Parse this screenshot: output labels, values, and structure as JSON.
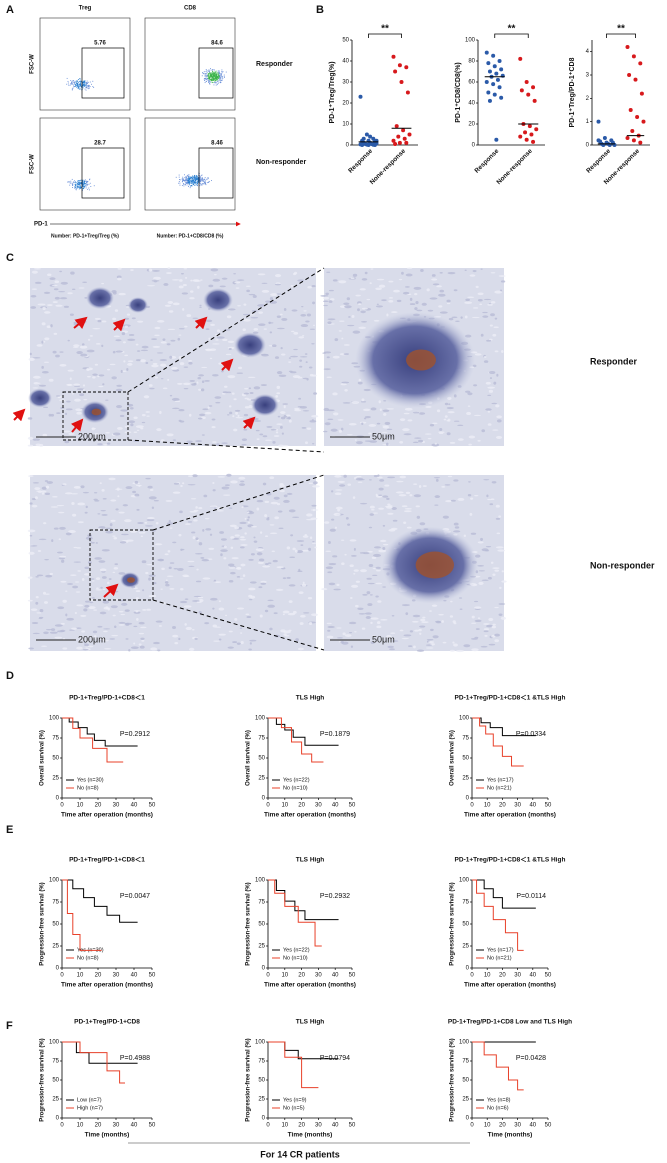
{
  "panel_labels": [
    "A",
    "B",
    "C",
    "D",
    "E",
    "F"
  ],
  "flow": {
    "columns": [
      "Treg",
      "CD8"
    ],
    "rows": [
      "Responder",
      "Non-responder"
    ],
    "gates": [
      5.76,
      84.6,
      28.7,
      8.46
    ],
    "y_axis": "FSC-W",
    "x_axis": "PD-1",
    "x_titles": [
      "Number: PD-1+Treg/Treg (%)",
      "Number: PD-1+CD8/CD8 (%)"
    ]
  },
  "ihc": {
    "rows": [
      "Responder",
      "Non-responder"
    ],
    "scale_bars": [
      "200μm",
      "50μm"
    ]
  },
  "footer": "For 14 CR patients",
  "chart_data": [
    {
      "type": "strip",
      "ylabel": "PD-1⁺Treg/Treg(%)",
      "categories": [
        "Response",
        "None-response"
      ],
      "colors": [
        "#2b5aa8",
        "#d7191c"
      ],
      "annotation": "**",
      "ylim": [
        0,
        50
      ],
      "yticks": [
        0,
        10,
        20,
        30,
        40,
        50
      ],
      "points": [
        [
          23,
          5,
          3,
          2,
          2,
          1.5,
          1,
          1,
          0.8,
          0.5,
          0.5,
          0.3,
          0.2,
          0.1,
          0,
          0,
          0,
          3,
          4,
          2
        ],
        [
          42,
          38,
          37,
          35,
          30,
          25,
          9,
          7,
          5,
          4,
          3,
          2,
          1,
          1,
          0.5
        ]
      ],
      "medians": [
        1.5,
        8
      ]
    },
    {
      "type": "strip",
      "ylabel": "PD-1⁺CD8/CD8(%)",
      "categories": [
        "Response",
        "None-response"
      ],
      "colors": [
        "#2b5aa8",
        "#d7191c"
      ],
      "annotation": "**",
      "ylim": [
        0,
        100
      ],
      "yticks": [
        0,
        20,
        40,
        60,
        80,
        100
      ],
      "points": [
        [
          88,
          85,
          80,
          78,
          75,
          72,
          70,
          68,
          66,
          65,
          62,
          60,
          58,
          55,
          50,
          48,
          45,
          42,
          5
        ],
        [
          82,
          60,
          55,
          52,
          48,
          42,
          20,
          18,
          15,
          12,
          10,
          8,
          5,
          3
        ]
      ],
      "medians": [
        65,
        20
      ]
    },
    {
      "type": "strip",
      "ylabel": "PD-1⁺Treg/PD-1⁺CD8",
      "categories": [
        "Response",
        "None-response"
      ],
      "colors": [
        "#2b5aa8",
        "#d7191c"
      ],
      "annotation": "**",
      "ylim": [
        0,
        4.5
      ],
      "yticks": [
        0,
        1,
        2,
        3,
        4
      ],
      "points": [
        [
          1.0,
          0.3,
          0.2,
          0.15,
          0.1,
          0.1,
          0.05,
          0.05,
          0,
          0,
          0,
          0.2
        ],
        [
          4.2,
          3.8,
          3.5,
          3.0,
          2.8,
          2.2,
          1.5,
          1.2,
          1.0,
          0.6,
          0.4,
          0.3,
          0.2,
          0.1
        ]
      ],
      "medians": [
        0.05,
        0.4
      ]
    },
    {
      "type": "line",
      "title": "PD-1+Treg/PD-1+CD8＜1",
      "annotation": "P=0.2912",
      "ylabel": "Overall survival (%)",
      "xlabel": "Time after operation (months)",
      "xlim": [
        0,
        50
      ],
      "xticks": [
        0,
        10,
        20,
        30,
        40,
        50
      ],
      "ylim": [
        0,
        100
      ],
      "yticks": [
        0,
        25,
        50,
        75,
        100
      ],
      "series": [
        {
          "name": "Yes (n=30)",
          "color": "#000000",
          "x": [
            0,
            4,
            4,
            9,
            9,
            14,
            14,
            18,
            18,
            24,
            24,
            42
          ],
          "values": [
            100,
            100,
            95,
            95,
            88,
            88,
            80,
            80,
            72,
            72,
            65,
            65
          ]
        },
        {
          "name": "No (n=8)",
          "color": "#e8412a",
          "x": [
            0,
            6,
            6,
            10,
            10,
            17,
            17,
            25,
            25,
            34
          ],
          "values": [
            100,
            100,
            87,
            87,
            75,
            75,
            62,
            62,
            45,
            45
          ]
        }
      ]
    },
    {
      "type": "line",
      "title": "TLS High",
      "annotation": "P=0.1879",
      "ylabel": "Overall survival (%)",
      "xlabel": "Time after operation (months)",
      "xlim": [
        0,
        50
      ],
      "xticks": [
        0,
        10,
        20,
        30,
        40,
        50
      ],
      "ylim": [
        0,
        100
      ],
      "yticks": [
        0,
        25,
        50,
        75,
        100
      ],
      "series": [
        {
          "name": "Yes (n=22)",
          "color": "#000000",
          "x": [
            0,
            5,
            5,
            10,
            10,
            15,
            15,
            22,
            22,
            42
          ],
          "values": [
            100,
            100,
            92,
            92,
            85,
            85,
            76,
            76,
            66,
            66
          ]
        },
        {
          "name": "No (n=10)",
          "color": "#e8412a",
          "x": [
            0,
            8,
            8,
            14,
            14,
            20,
            20,
            26,
            26,
            33
          ],
          "values": [
            100,
            100,
            88,
            88,
            70,
            70,
            55,
            55,
            45,
            45
          ]
        }
      ]
    },
    {
      "type": "line",
      "title": "PD-1+Treg/PD-1+CD8＜1 &TLS High",
      "annotation": "P=0.0334",
      "ylabel": "Overall survival (%)",
      "xlabel": "Time after operation (months)",
      "xlim": [
        0,
        50
      ],
      "xticks": [
        0,
        10,
        20,
        30,
        40,
        50
      ],
      "ylim": [
        0,
        100
      ],
      "yticks": [
        0,
        25,
        50,
        75,
        100
      ],
      "series": [
        {
          "name": "Yes (n=17)",
          "color": "#000000",
          "x": [
            0,
            6,
            6,
            12,
            12,
            20,
            20,
            42
          ],
          "values": [
            100,
            100,
            94,
            94,
            88,
            88,
            78,
            78
          ]
        },
        {
          "name": "No (n=21)",
          "color": "#e8412a",
          "x": [
            0,
            5,
            5,
            9,
            9,
            14,
            14,
            20,
            20,
            26,
            26,
            34
          ],
          "values": [
            100,
            100,
            90,
            90,
            80,
            80,
            65,
            65,
            52,
            52,
            40,
            40
          ]
        }
      ]
    },
    {
      "type": "line",
      "title": "PD-1+Treg/PD-1+CD8＜1",
      "annotation": "P=0.0047",
      "ylabel": "Progression-free survival (%)",
      "xlabel": "Time after operation (months)",
      "xlim": [
        0,
        50
      ],
      "xticks": [
        0,
        10,
        20,
        30,
        40,
        50
      ],
      "ylim": [
        0,
        100
      ],
      "yticks": [
        0,
        25,
        50,
        75,
        100
      ],
      "series": [
        {
          "name": "Yes (n=30)",
          "color": "#000000",
          "x": [
            0,
            6,
            6,
            12,
            12,
            18,
            18,
            25,
            25,
            32,
            32,
            42
          ],
          "values": [
            100,
            100,
            90,
            90,
            80,
            80,
            70,
            70,
            60,
            60,
            52,
            52
          ]
        },
        {
          "name": "No (n=8)",
          "color": "#e8412a",
          "x": [
            0,
            3,
            3,
            6,
            6,
            10,
            10,
            22
          ],
          "values": [
            100,
            100,
            62,
            62,
            38,
            38,
            20,
            20
          ]
        }
      ]
    },
    {
      "type": "line",
      "title": "TLS High",
      "annotation": "P=0.2932",
      "ylabel": "Progression-free survival (%)",
      "xlabel": "Time after operation (months)",
      "xlim": [
        0,
        50
      ],
      "xticks": [
        0,
        10,
        20,
        30,
        40,
        50
      ],
      "ylim": [
        0,
        100
      ],
      "yticks": [
        0,
        25,
        50,
        75,
        100
      ],
      "series": [
        {
          "name": "Yes (n=22)",
          "color": "#000000",
          "x": [
            0,
            5,
            5,
            10,
            10,
            16,
            16,
            22,
            22,
            42
          ],
          "values": [
            100,
            100,
            88,
            88,
            76,
            76,
            65,
            65,
            55,
            55
          ]
        },
        {
          "name": "No (n=10)",
          "color": "#e8412a",
          "x": [
            0,
            4,
            4,
            10,
            10,
            18,
            18,
            28,
            28,
            32
          ],
          "values": [
            100,
            100,
            85,
            85,
            70,
            70,
            52,
            52,
            25,
            25
          ]
        }
      ]
    },
    {
      "type": "line",
      "title": "PD-1+Treg/PD-1+CD8＜1  &TLS High",
      "annotation": "P=0.0114",
      "ylabel": "Progression-free survival (%)",
      "xlabel": "Time after operation (months)",
      "xlim": [
        0,
        50
      ],
      "xticks": [
        0,
        10,
        20,
        30,
        40,
        50
      ],
      "ylim": [
        0,
        100
      ],
      "yticks": [
        0,
        25,
        50,
        75,
        100
      ],
      "series": [
        {
          "name": "Yes (n=17)",
          "color": "#000000",
          "x": [
            0,
            8,
            8,
            14,
            14,
            20,
            20,
            42
          ],
          "values": [
            100,
            100,
            90,
            90,
            80,
            80,
            68,
            68
          ]
        },
        {
          "name": "No (n=21)",
          "color": "#e8412a",
          "x": [
            0,
            3,
            3,
            8,
            8,
            14,
            14,
            22,
            22,
            30,
            30,
            34
          ],
          "values": [
            100,
            100,
            85,
            85,
            70,
            70,
            55,
            55,
            40,
            40,
            20,
            20
          ]
        }
      ]
    },
    {
      "type": "line",
      "title": "PD-1+Treg/PD-1+CD8",
      "annotation": "P=0.4988",
      "ylabel": "Progression-free survival (%)",
      "xlabel": "Time (months)",
      "xlim": [
        0,
        50
      ],
      "xticks": [
        0,
        10,
        20,
        30,
        40,
        50
      ],
      "ylim": [
        0,
        100
      ],
      "yticks": [
        0,
        25,
        50,
        75,
        100
      ],
      "series": [
        {
          "name": "Low (n=7)",
          "color": "#000000",
          "x": [
            0,
            8,
            8,
            15,
            15,
            42
          ],
          "values": [
            100,
            100,
            86,
            86,
            72,
            72
          ]
        },
        {
          "name": "High (n=7)",
          "color": "#e8412a",
          "x": [
            0,
            10,
            10,
            25,
            25,
            32,
            32,
            35
          ],
          "values": [
            100,
            100,
            86,
            86,
            62,
            62,
            46,
            46
          ]
        }
      ]
    },
    {
      "type": "line",
      "title": "TLS High",
      "annotation": "P=0.0794",
      "ylabel": "Progression-free survival (%)",
      "xlabel": "Time (months)",
      "xlim": [
        0,
        50
      ],
      "xticks": [
        0,
        10,
        20,
        30,
        40,
        50
      ],
      "ylim": [
        0,
        100
      ],
      "yticks": [
        0,
        25,
        50,
        75,
        100
      ],
      "series": [
        {
          "name": "Yes (n=9)",
          "color": "#000000",
          "x": [
            0,
            10,
            10,
            18,
            18,
            42
          ],
          "values": [
            100,
            100,
            89,
            89,
            78,
            78
          ]
        },
        {
          "name": "No (n=5)",
          "color": "#e8412a",
          "x": [
            0,
            10,
            10,
            20,
            20,
            30
          ],
          "values": [
            100,
            100,
            80,
            80,
            40,
            40
          ]
        }
      ]
    },
    {
      "type": "line",
      "title": "PD-1+Treg/PD-1+CD8 Low and TLS High",
      "annotation": "P=0.0428",
      "ylabel": "Progression-free survival (%)",
      "xlabel": "Time (months)",
      "xlim": [
        0,
        50
      ],
      "xticks": [
        0,
        10,
        20,
        30,
        40,
        50
      ],
      "ylim": [
        0,
        100
      ],
      "yticks": [
        0,
        25,
        50,
        75,
        100
      ],
      "series": [
        {
          "name": "Yes (n=8)",
          "color": "#000000",
          "x": [
            0,
            42
          ],
          "values": [
            100,
            100
          ]
        },
        {
          "name": "No (n=6)",
          "color": "#e8412a",
          "x": [
            0,
            8,
            8,
            16,
            16,
            24,
            24,
            30,
            30,
            34
          ],
          "values": [
            100,
            100,
            83,
            83,
            67,
            67,
            50,
            50,
            37,
            37
          ]
        }
      ]
    }
  ]
}
